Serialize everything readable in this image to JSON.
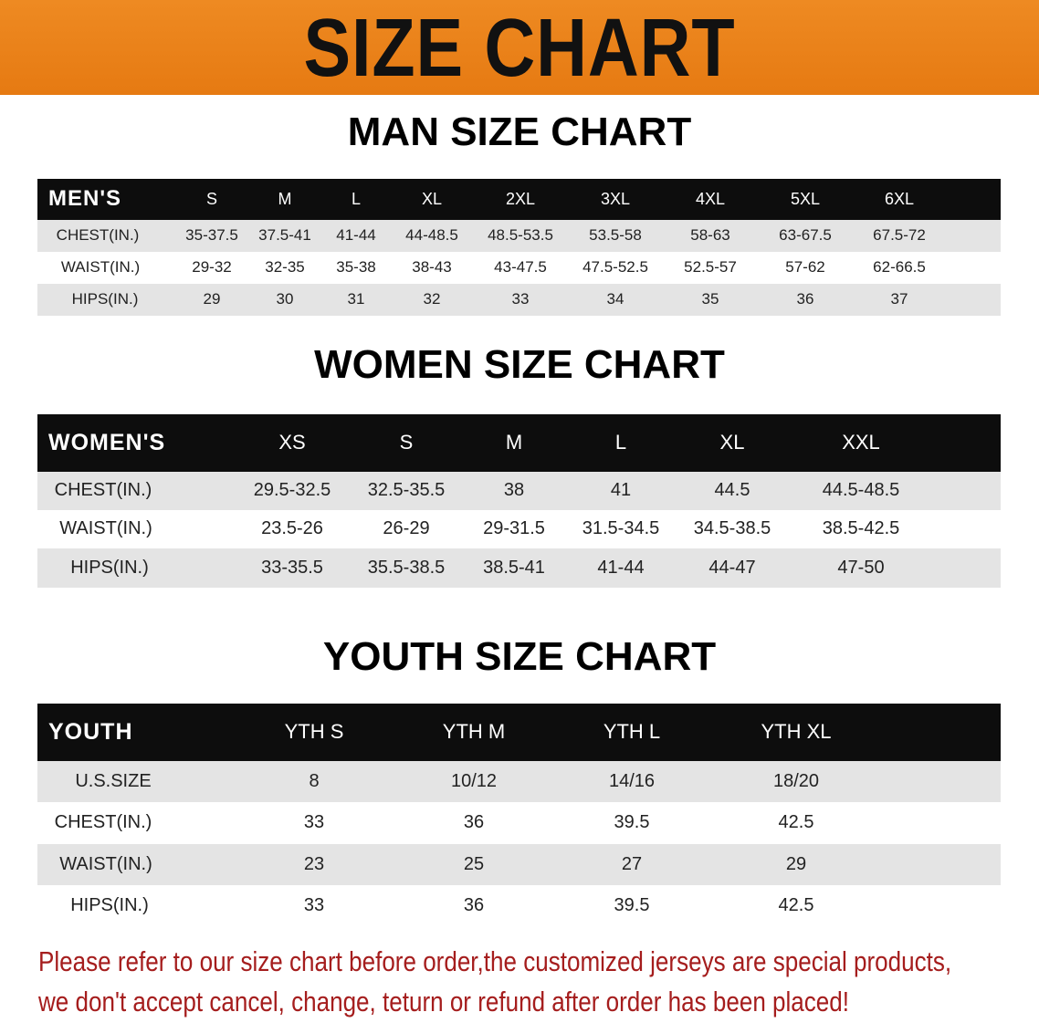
{
  "banner": {
    "title": "SIZE CHART",
    "color": "#ec8418"
  },
  "tables": [
    {
      "title": "MAN SIZE CHART",
      "header_label": "MEN'S",
      "sizes": [
        "S",
        "M",
        "L",
        "XL",
        "2XL",
        "3XL",
        "4XL",
        "5XL",
        "6XL"
      ],
      "rows": [
        {
          "label": "CHEST(IN.)",
          "values": [
            "35-37.5",
            "37.5-41",
            "41-44",
            "44-48.5",
            "48.5-53.5",
            "53.5-58",
            "58-63",
            "63-67.5",
            "67.5-72"
          ]
        },
        {
          "label": "WAIST(IN.)",
          "values": [
            "29-32",
            "32-35",
            "35-38",
            "38-43",
            "43-47.5",
            "47.5-52.5",
            "52.5-57",
            "57-62",
            "62-66.5"
          ]
        },
        {
          "label": "HIPS(IN.)",
          "values": [
            "29",
            "30",
            "31",
            "32",
            "33",
            "34",
            "35",
            "36",
            "37"
          ]
        }
      ]
    },
    {
      "title": "WOMEN SIZE CHART",
      "header_label": "WOMEN'S",
      "sizes": [
        "XS",
        "S",
        "M",
        "L",
        "XL",
        "XXL"
      ],
      "rows": [
        {
          "label": "CHEST(IN.)",
          "values": [
            "29.5-32.5",
            "32.5-35.5",
            "38",
            "41",
            "44.5",
            "44.5-48.5"
          ]
        },
        {
          "label": "WAIST(IN.)",
          "values": [
            "23.5-26",
            "26-29",
            "29-31.5",
            "31.5-34.5",
            "34.5-38.5",
            "38.5-42.5"
          ]
        },
        {
          "label": "HIPS(IN.)",
          "values": [
            "33-35.5",
            "35.5-38.5",
            "38.5-41",
            "41-44",
            "44-47",
            "47-50"
          ]
        }
      ]
    },
    {
      "title": "YOUTH SIZE CHART",
      "header_label": "YOUTH",
      "sizes": [
        "YTH S",
        "YTH M",
        "YTH L",
        "YTH XL"
      ],
      "rows": [
        {
          "label": "U.S.SIZE",
          "values": [
            "8",
            "10/12",
            "14/16",
            "18/20"
          ]
        },
        {
          "label": "CHEST(IN.)",
          "values": [
            "33",
            "36",
            "39.5",
            "42.5"
          ]
        },
        {
          "label": "WAIST(IN.)",
          "values": [
            "23",
            "25",
            "27",
            "29"
          ]
        },
        {
          "label": "HIPS(IN.)",
          "values": [
            "33",
            "36",
            "39.5",
            "42.5"
          ]
        }
      ]
    }
  ],
  "notice": {
    "line1": "Please refer to our size chart before order,the customized jerseys are special products,",
    "line2": "we don't accept cancel, change, teturn or refund after order has been placed!",
    "color": "#a51d1d"
  }
}
